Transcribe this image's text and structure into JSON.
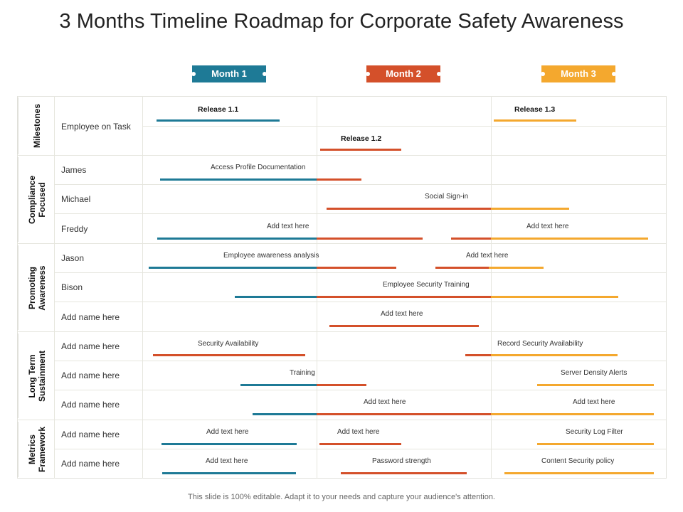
{
  "title": "3 Months Timeline Roadmap for Corporate Safety Awareness",
  "months": [
    "Month 1",
    "Month 2",
    "Month 3"
  ],
  "colors": {
    "blue": "#1e7a96",
    "red": "#d4502a",
    "orange": "#f4a82e"
  },
  "groups": [
    "Milestones",
    "Compliance Focused",
    "Promoting Awareness",
    "Long Term Sustainment",
    "Metrics Framework"
  ],
  "rows": [
    "Employee on Task",
    "James",
    "Michael",
    "Freddy",
    "Jason",
    "Bison",
    "Add name here",
    "Add name here",
    "Add name here",
    "Add name here",
    "Add name here",
    "Add name here"
  ],
  "labels": {
    "release_1_1": "Release 1.1",
    "release_1_2": "Release 1.2",
    "release_1_3": "Release 1.3",
    "access_profile": "Access Profile Documentation",
    "social_signin": "Social Sign-in",
    "freddy_1": "Add text here",
    "freddy_2": "Add text here",
    "awareness_analysis": "Employee awareness analysis",
    "jason_2": "Add text here",
    "security_training": "Employee Security Training",
    "row6_label": "Add text here",
    "security_availability": "Security Availability",
    "record_security": "Record Security Availability",
    "training": "Training",
    "server_density": "Server Density Alerts",
    "row9_a": "Add text here",
    "row9_b": "Add text here",
    "row10_a": "Add text here",
    "row10_b": "Add text here",
    "security_log": "Security Log Filter",
    "row11_a": "Add text here",
    "password_strength": "Password strength",
    "content_security": "Content Security policy"
  },
  "footer": "This slide is 100% editable. Adapt it to your needs and capture your audience's attention."
}
